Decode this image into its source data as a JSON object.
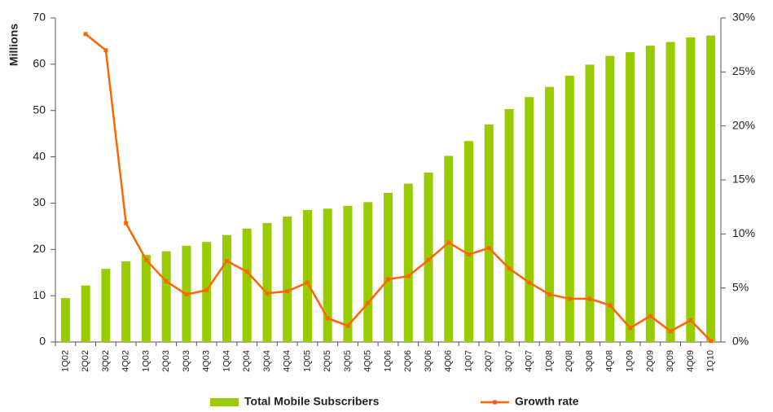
{
  "chart_data": {
    "type": "bar_line",
    "y_label": "Millions",
    "categories": [
      "1Q02",
      "2Q02",
      "3Q02",
      "4Q02",
      "1Q03",
      "2Q03",
      "3Q03",
      "4Q03",
      "1Q04",
      "2Q04",
      "3Q04",
      "4Q04",
      "1Q05",
      "2Q05",
      "3Q05",
      "4Q05",
      "1Q06",
      "2Q06",
      "3Q06",
      "4Q06",
      "1Q07",
      "2Q07",
      "3Q07",
      "4Q07",
      "1Q08",
      "2Q08",
      "3Q08",
      "4Q08",
      "1Q09",
      "2Q09",
      "3Q09",
      "4Q09",
      "1Q10"
    ],
    "series": [
      {
        "name": "Total Mobile Subscribers",
        "type": "bar",
        "color": "#99cc00",
        "values": [
          9.5,
          12.2,
          15.8,
          17.4,
          18.8,
          19.6,
          20.8,
          21.6,
          23.1,
          24.5,
          25.7,
          27.1,
          28.5,
          28.8,
          29.4,
          30.2,
          32.2,
          34.2,
          36.6,
          40.2,
          43.4,
          47.0,
          50.3,
          52.9,
          55.1,
          57.5,
          59.9,
          61.8,
          62.6,
          64.0,
          64.8,
          65.8,
          66.2
        ]
      },
      {
        "name": "Growth rate",
        "type": "line",
        "axis": "y2",
        "color": "#ff6600",
        "values": [
          null,
          28.5,
          27.0,
          11.0,
          7.6,
          5.6,
          4.4,
          4.8,
          7.5,
          6.5,
          4.5,
          4.7,
          5.5,
          2.2,
          1.5,
          3.6,
          5.8,
          6.1,
          7.6,
          9.2,
          8.1,
          8.7,
          6.8,
          5.5,
          4.4,
          4.0,
          4.0,
          3.4,
          1.3,
          2.4,
          1.0,
          2.0,
          0.1
        ]
      }
    ],
    "ylim": [
      0,
      70
    ],
    "yticks": [
      0,
      10,
      20,
      30,
      40,
      50,
      60,
      70
    ],
    "y2lim": [
      0,
      30
    ],
    "y2ticks": [
      {
        "value": 0,
        "label": "0%"
      },
      {
        "value": 5,
        "label": "5%"
      },
      {
        "value": 10,
        "label": "10%"
      },
      {
        "value": 15,
        "label": "15%"
      },
      {
        "value": 20,
        "label": "20%"
      },
      {
        "value": 25,
        "label": "25%"
      },
      {
        "value": 30,
        "label": "30%"
      }
    ],
    "grid": false,
    "legend": "bottom"
  }
}
